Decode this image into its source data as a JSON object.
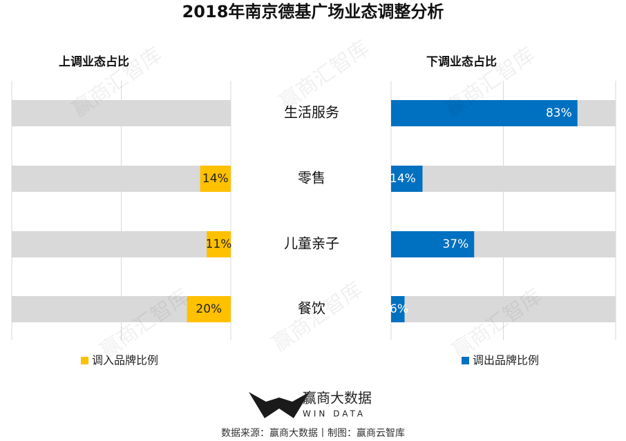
{
  "title": "2018年南京德基广场业态调整分析",
  "chart_data": {
    "type": "butterfly",
    "categories": [
      "生活服务",
      "零售",
      "儿童亲子",
      "餐饮"
    ],
    "series": [
      {
        "panel_title": "上调业态占比",
        "name": "调入品牌比例",
        "color": "#ffc000",
        "label_color": "#222222",
        "values": [
          null,
          14,
          11,
          20
        ],
        "value_labels": [
          null,
          "14%",
          "11%",
          "20%"
        ]
      },
      {
        "panel_title": "下调业态占比",
        "name": "调出品牌比例",
        "color": "#0070c0",
        "label_color": "#ffffff",
        "values": [
          83,
          14,
          37,
          6
        ],
        "value_labels": [
          "83%",
          "14%",
          "37%",
          "6%"
        ]
      }
    ],
    "xlim": [
      0,
      100
    ],
    "xticks": [
      0,
      50,
      100
    ],
    "tick_labels": false,
    "grid": true,
    "track_color": "#d9d9d9"
  },
  "watermark": "赢商汇智库",
  "logo": {
    "name": "赢商大数据",
    "sub": "WIN DATA"
  },
  "source": "数据来源：赢商大数据丨制图：赢商云智库"
}
